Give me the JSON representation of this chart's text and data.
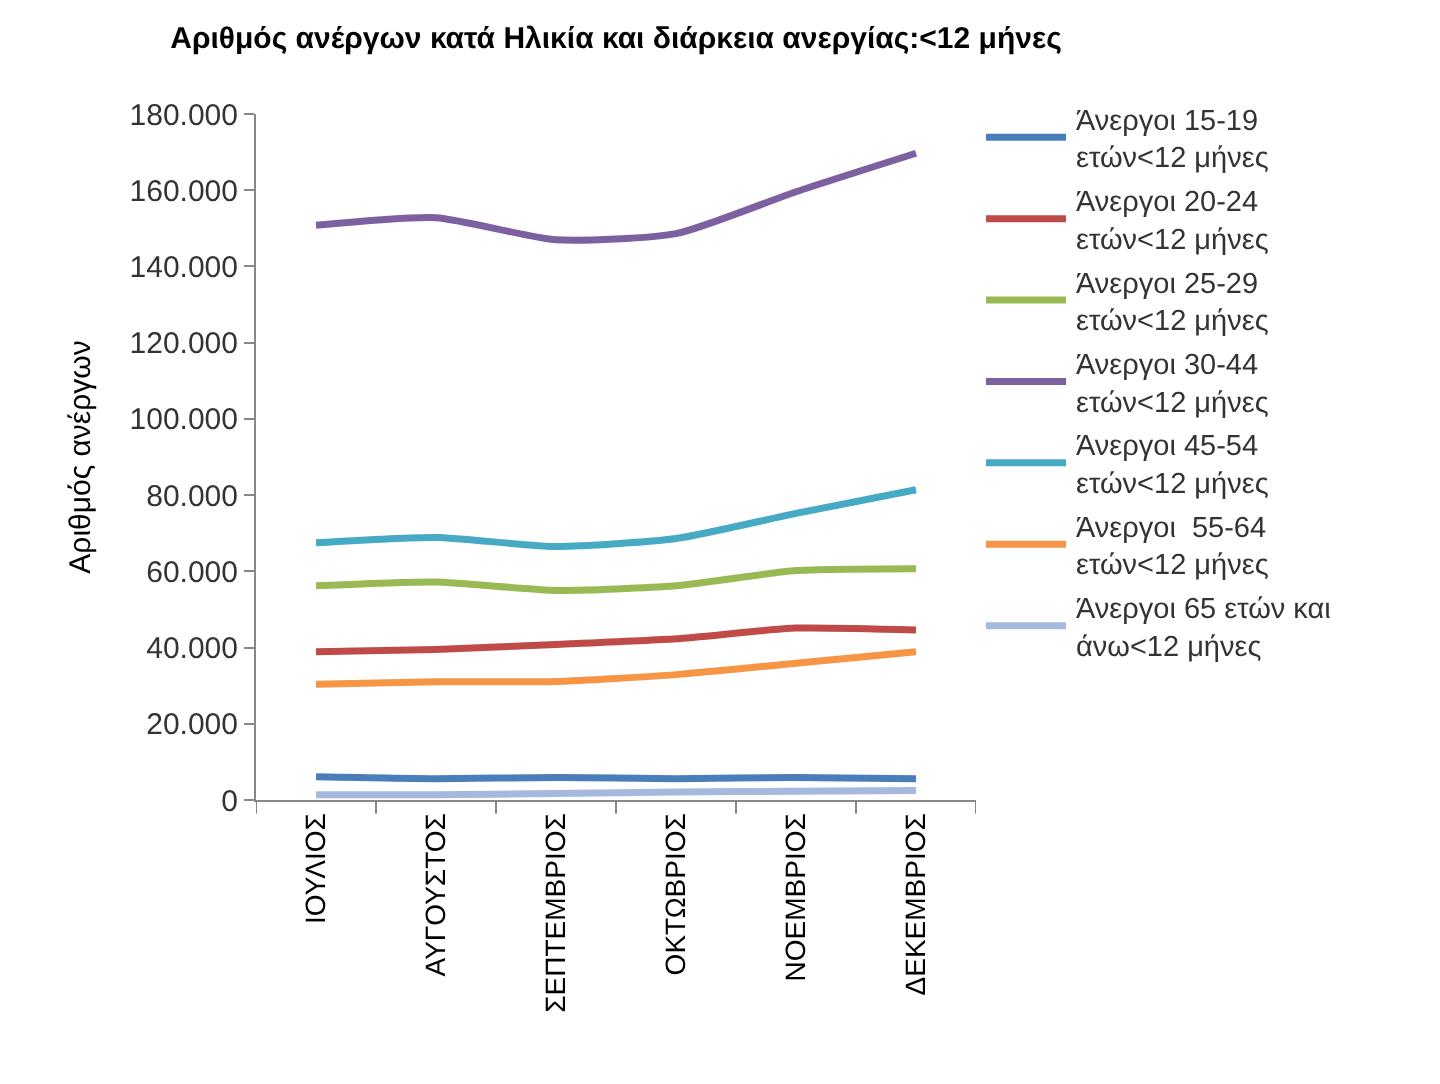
{
  "chart_data": {
    "type": "line",
    "title": "Αριθμός ανέργων κατά Ηλικία και διάρκεια ανεργίας:<12 μήνες",
    "ylabel": "Αριθμός ανέργων",
    "categories": [
      "ΙΟΥΛΙΟΣ",
      "ΑΥΓΟΥΣΤΟΣ",
      "ΣΕΠΤΕΜΒΡΙΟΣ",
      "ΟΚΤΩΒΡΙΟΣ",
      "ΝΟΕΜΒΡΙΟΣ",
      "ΔΕΚΕΜΒΡΙΟΣ"
    ],
    "series": [
      {
        "name": "Άνεργοι 15-19 ετών<12 μήνες",
        "color": "#4a7ebb",
        "values": [
          6100,
          5600,
          5900,
          5600,
          5900,
          5600
        ]
      },
      {
        "name": "Άνεργοι 20-24 ετών<12 μήνες",
        "color": "#be4b48",
        "values": [
          38900,
          39500,
          40800,
          42300,
          45100,
          44600
        ]
      },
      {
        "name": "Άνεργοι 25-29 ετών<12 μήνες",
        "color": "#98b954",
        "values": [
          56200,
          57200,
          55000,
          56200,
          60200,
          60700
        ]
      },
      {
        "name": "Άνεργοι 30-44 ετών<12 μήνες",
        "color": "#7d60a0",
        "values": [
          150800,
          152800,
          147000,
          148600,
          159600,
          169700
        ]
      },
      {
        "name": "Άνεργοι 45-54 ετών<12 μήνες",
        "color": "#46aac5",
        "values": [
          67500,
          68900,
          66500,
          68600,
          75200,
          81400
        ]
      },
      {
        "name": "Άνεργοι  55-64 ετών<12 μήνες",
        "color": "#f69546",
        "values": [
          30400,
          31000,
          31100,
          32900,
          35900,
          38900
        ]
      },
      {
        "name": "Άνεργοι 65 ετών και άνω<12 μήνες",
        "color": "#a5b9de",
        "values": [
          1400,
          1400,
          1700,
          2100,
          2300,
          2500
        ]
      }
    ],
    "ylim": [
      0,
      180000
    ],
    "yticks": [
      {
        "value": 0,
        "label": "0"
      },
      {
        "value": 20000,
        "label": "20.000"
      },
      {
        "value": 40000,
        "label": "40.000"
      },
      {
        "value": 60000,
        "label": "60.000"
      },
      {
        "value": 80000,
        "label": "80.000"
      },
      {
        "value": 100000,
        "label": "100.000"
      },
      {
        "value": 120000,
        "label": "120.000"
      },
      {
        "value": 140000,
        "label": "140.000"
      },
      {
        "value": 160000,
        "label": "160.000"
      },
      {
        "value": 180000,
        "label": "180.000"
      }
    ],
    "grid": false,
    "legend": "right",
    "marker": "none",
    "line_style": "solid"
  }
}
